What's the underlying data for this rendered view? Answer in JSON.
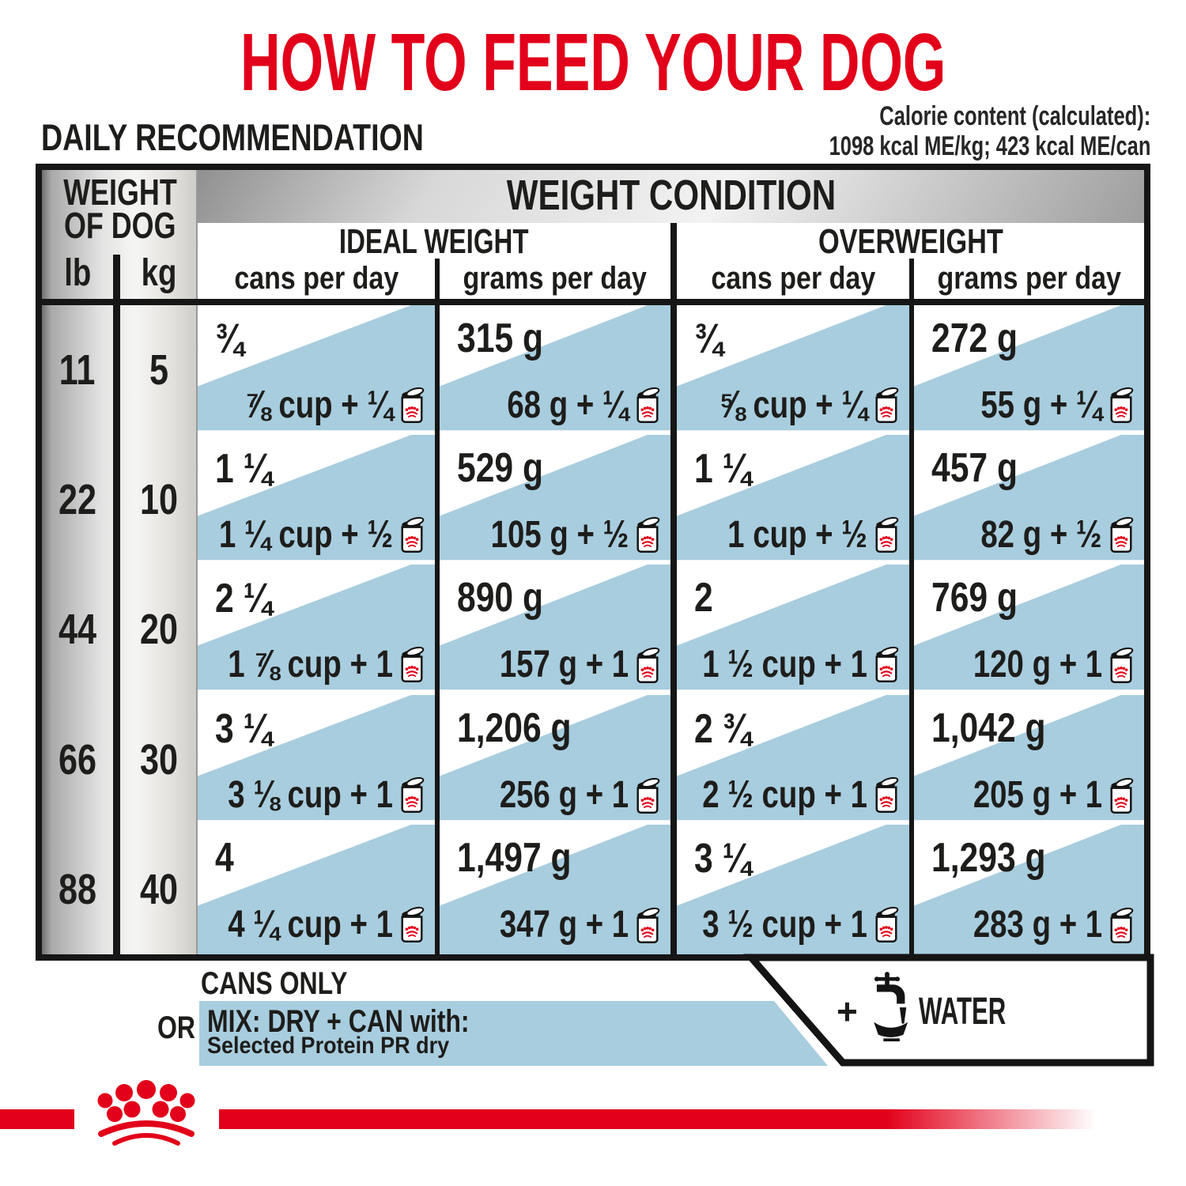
{
  "title": "HOW TO FEED YOUR DOG",
  "subtitle": "DAILY RECOMMENDATION",
  "calorie": {
    "line1": "Calorie content (calculated):",
    "line2": "1098 kcal ME/kg; 423 kcal ME/can"
  },
  "table": {
    "weight_col": {
      "line1": "WEIGHT",
      "line2": "OF DOG",
      "unit_lb": "lb",
      "unit_kg": "kg"
    },
    "condition_header": "WEIGHT CONDITION",
    "groups": [
      {
        "label": "IDEAL WEIGHT",
        "col1": "cans per day",
        "col2": "grams per day"
      },
      {
        "label": "OVERWEIGHT",
        "col1": "cans per day",
        "col2": "grams per day"
      }
    ],
    "rows": [
      {
        "lb": "11",
        "kg": "5",
        "cells": [
          {
            "top": "¾",
            "bottom": "⅞ cup + ¼"
          },
          {
            "top": "315 g",
            "bottom": "68 g + ¼"
          },
          {
            "top": "¾",
            "bottom": "⅝ cup + ¼"
          },
          {
            "top": "272 g",
            "bottom": "55 g + ¼"
          }
        ]
      },
      {
        "lb": "22",
        "kg": "10",
        "cells": [
          {
            "top": "1 ¼",
            "bottom": "1 ¼ cup + ½"
          },
          {
            "top": "529 g",
            "bottom": "105 g + ½"
          },
          {
            "top": "1 ¼",
            "bottom": "1 cup + ½"
          },
          {
            "top": "457 g",
            "bottom": "82 g + ½"
          }
        ]
      },
      {
        "lb": "44",
        "kg": "20",
        "cells": [
          {
            "top": "2 ¼",
            "bottom": "1 ⅞ cup + 1"
          },
          {
            "top": "890 g",
            "bottom": "157 g + 1"
          },
          {
            "top": "2",
            "bottom": "1 ½ cup + 1"
          },
          {
            "top": "769 g",
            "bottom": "120 g + 1"
          }
        ]
      },
      {
        "lb": "66",
        "kg": "30",
        "cells": [
          {
            "top": "3 ¼",
            "bottom": "3 ⅛ cup + 1"
          },
          {
            "top": "1,206 g",
            "bottom": "256 g + 1"
          },
          {
            "top": "2 ¾",
            "bottom": "2 ½ cup + 1"
          },
          {
            "top": "1,042 g",
            "bottom": "205 g + 1"
          }
        ]
      },
      {
        "lb": "88",
        "kg": "40",
        "cells": [
          {
            "top": "4",
            "bottom": "4 ¼ cup + 1"
          },
          {
            "top": "1,497 g",
            "bottom": "347 g + 1"
          },
          {
            "top": "3 ¼",
            "bottom": "3 ½ cup + 1"
          },
          {
            "top": "1,293 g",
            "bottom": "283 g + 1"
          }
        ]
      }
    ]
  },
  "legend": {
    "cans_only": "CANS ONLY",
    "or": "OR",
    "mix": "MIX: DRY + CAN with:",
    "mix_sub": "Selected Protein PR dry",
    "plus": "+",
    "water": "WATER"
  },
  "icons": {
    "can": "dog-food-can-icon",
    "tap": "water-tap-icon",
    "crown": "royal-canin-crown-logo"
  },
  "colors": {
    "red": "#e2001a",
    "stripe_blue": "#a8cdde",
    "text_black": "#1d1d1b"
  }
}
